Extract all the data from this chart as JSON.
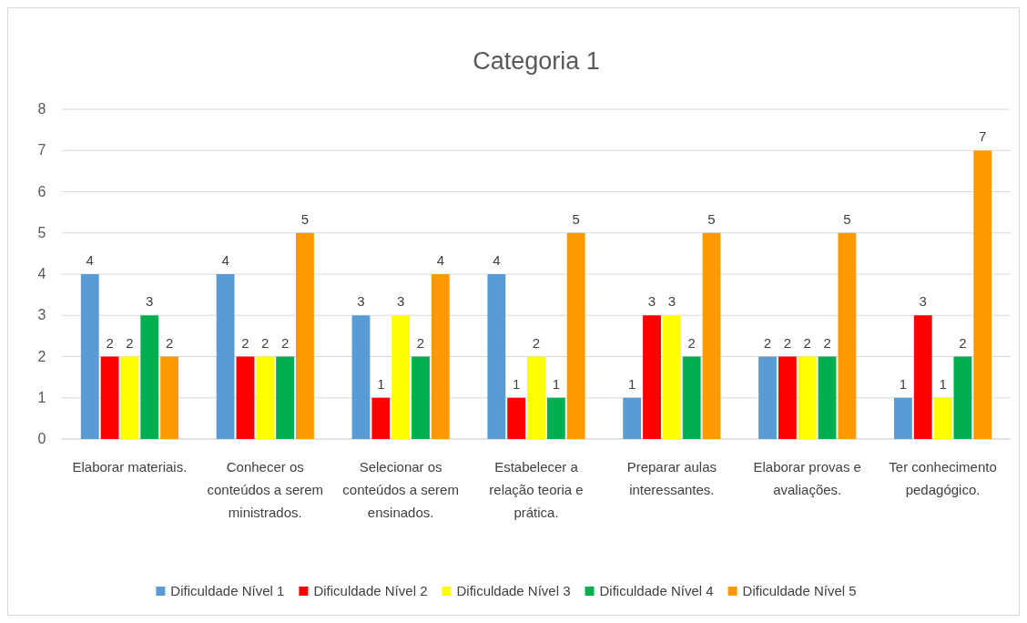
{
  "chart_data": {
    "type": "bar",
    "title": "Categoria 1",
    "categories": [
      "Elaborar materiais.",
      "Conhecer os conteúdos a serem ministrados.",
      "Selecionar os conteúdos a serem ensinados.",
      "Estabelecer a relação teoria e prática.",
      "Preparar aulas interessantes.",
      "Elaborar provas e avaliações.",
      "Ter conhecimento pedagógico."
    ],
    "series": [
      {
        "name": "Dificuldade Nível 1",
        "color": "#5b9bd5",
        "values": [
          4,
          4,
          3,
          4,
          1,
          2,
          1
        ]
      },
      {
        "name": "Dificuldade Nível 2",
        "color": "#ff0000",
        "values": [
          2,
          2,
          1,
          1,
          3,
          2,
          3
        ]
      },
      {
        "name": "Dificuldade Nível 3",
        "color": "#ffff00",
        "values": [
          2,
          2,
          3,
          2,
          3,
          2,
          1
        ]
      },
      {
        "name": "Dificuldade Nível 4",
        "color": "#00b050",
        "values": [
          3,
          2,
          2,
          1,
          2,
          2,
          2
        ]
      },
      {
        "name": "Dificuldade Nível 5",
        "color": "#ff9900",
        "values": [
          2,
          5,
          4,
          5,
          5,
          5,
          7
        ]
      }
    ],
    "ylim": [
      0,
      8
    ],
    "yticks": [
      0,
      1,
      2,
      3,
      4,
      5,
      6,
      7,
      8
    ],
    "grid": "y",
    "legend": "bottom",
    "data_labels": true
  }
}
